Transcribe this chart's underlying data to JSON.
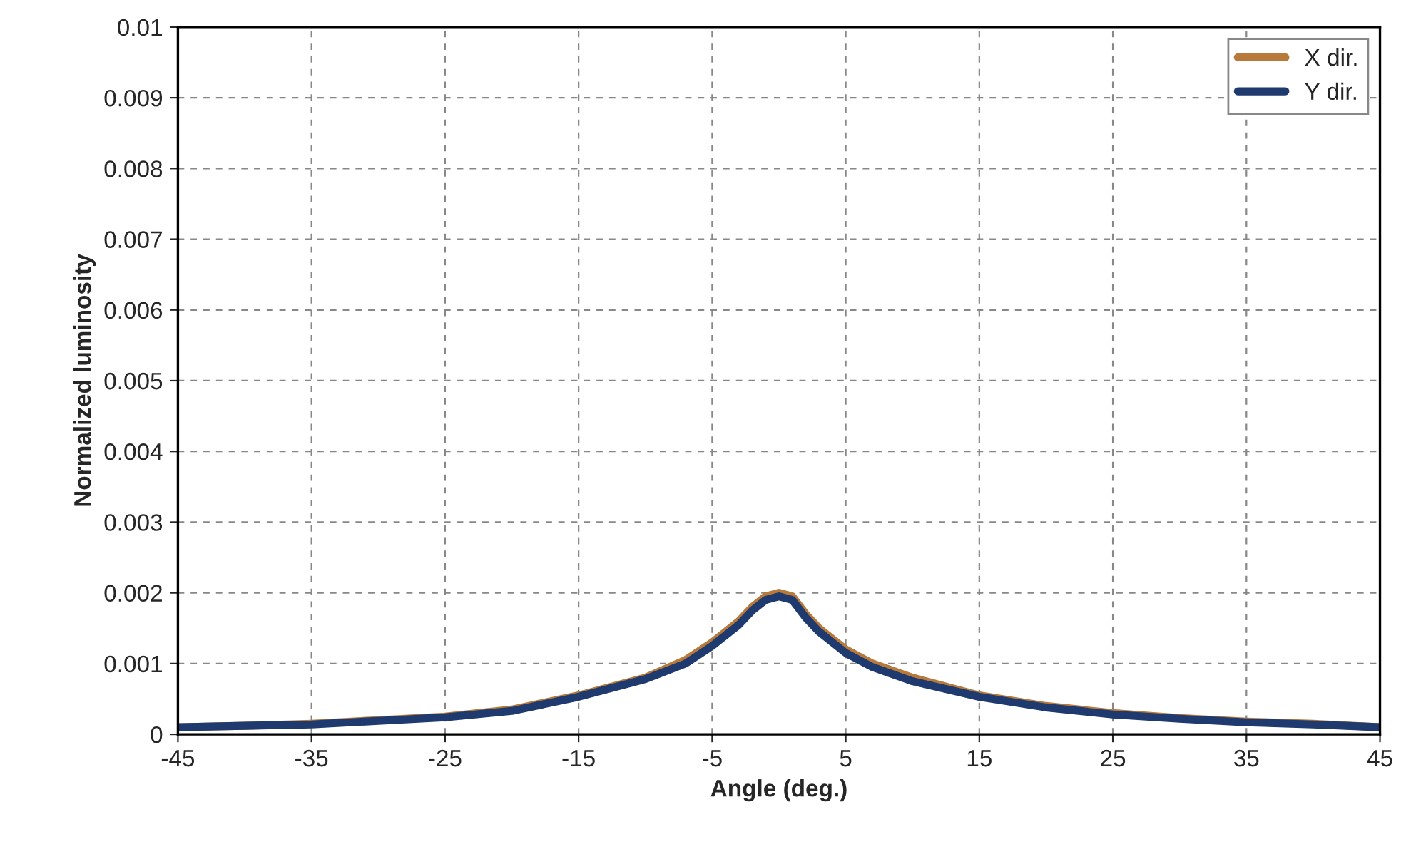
{
  "chart_data": {
    "type": "line",
    "xlabel": "Angle (deg.)",
    "ylabel": "Normalized luminosity",
    "x": [
      -45,
      -40,
      -35,
      -30,
      -25,
      -20,
      -15,
      -10,
      -7,
      -5,
      -3,
      -2,
      -1,
      0,
      1,
      2,
      3,
      5,
      7,
      10,
      15,
      20,
      25,
      30,
      35,
      40,
      45
    ],
    "series": [
      {
        "name": "X dir.",
        "color": "#b87a3a",
        "values": [
          0.0001,
          0.00012,
          0.00015,
          0.0002,
          0.00025,
          0.00035,
          0.00055,
          0.0008,
          0.00105,
          0.0013,
          0.0016,
          0.0018,
          0.00195,
          0.002,
          0.00195,
          0.0017,
          0.0015,
          0.0012,
          0.001,
          0.0008,
          0.00055,
          0.0004,
          0.0003,
          0.00023,
          0.00018,
          0.00015,
          0.0001
        ]
      },
      {
        "name": "Y dir.",
        "color": "#1e3a6e",
        "values": [
          0.0001,
          0.00012,
          0.00014,
          0.00019,
          0.00024,
          0.00033,
          0.00053,
          0.00078,
          0.001,
          0.00125,
          0.00155,
          0.00175,
          0.0019,
          0.00195,
          0.0019,
          0.00165,
          0.00145,
          0.00115,
          0.00095,
          0.00075,
          0.00053,
          0.00038,
          0.00028,
          0.00022,
          0.00017,
          0.00014,
          0.0001
        ]
      }
    ],
    "xlim": [
      -45,
      45
    ],
    "xticks": [
      -45,
      -35,
      -25,
      -15,
      -5,
      5,
      15,
      25,
      35,
      45
    ],
    "ylim": [
      0,
      0.01
    ],
    "yticks": [
      0,
      0.001,
      0.002,
      0.003,
      0.004,
      0.005,
      0.006,
      0.007,
      0.008,
      0.009,
      0.01
    ],
    "grid": true,
    "legend": "top right",
    "marker": "none",
    "line_style": "solid"
  }
}
